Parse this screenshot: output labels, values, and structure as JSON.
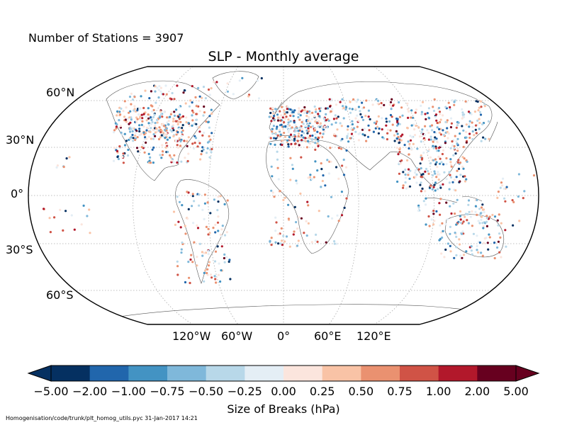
{
  "header": {
    "stations_label": "Number of Stations = 3907",
    "title": "SLP - Monthly average"
  },
  "map": {
    "projection": "Robinson",
    "graticule": "dotted",
    "lat_labels": [
      "60°N",
      "30°N",
      "0°",
      "30°S",
      "60°S"
    ],
    "lon_labels": [
      "120°W",
      "60°W",
      "0°",
      "60°E",
      "120°E"
    ],
    "markers": "small dots colored by break size at station locations"
  },
  "colorbar": {
    "label": "Size of Breaks (hPa)",
    "ticks": [
      "−5.00",
      "−2.00",
      "−1.00",
      "−0.75",
      "−0.50",
      "−0.25",
      "0.00",
      "0.25",
      "0.50",
      "0.75",
      "1.00",
      "2.00",
      "5.00"
    ],
    "colors": [
      "#053061",
      "#2166ac",
      "#4393c3",
      "#7fb8da",
      "#b8d8e9",
      "#e4eef5",
      "#fbe5dd",
      "#f9c3a6",
      "#ea9170",
      "#d05346",
      "#b2182b",
      "#67001f"
    ],
    "extend": "both"
  },
  "footer": {
    "text": "Homogenisation/code/trunk/plt_homog_utils.pyc   31-Jan-2017 14:21"
  }
}
